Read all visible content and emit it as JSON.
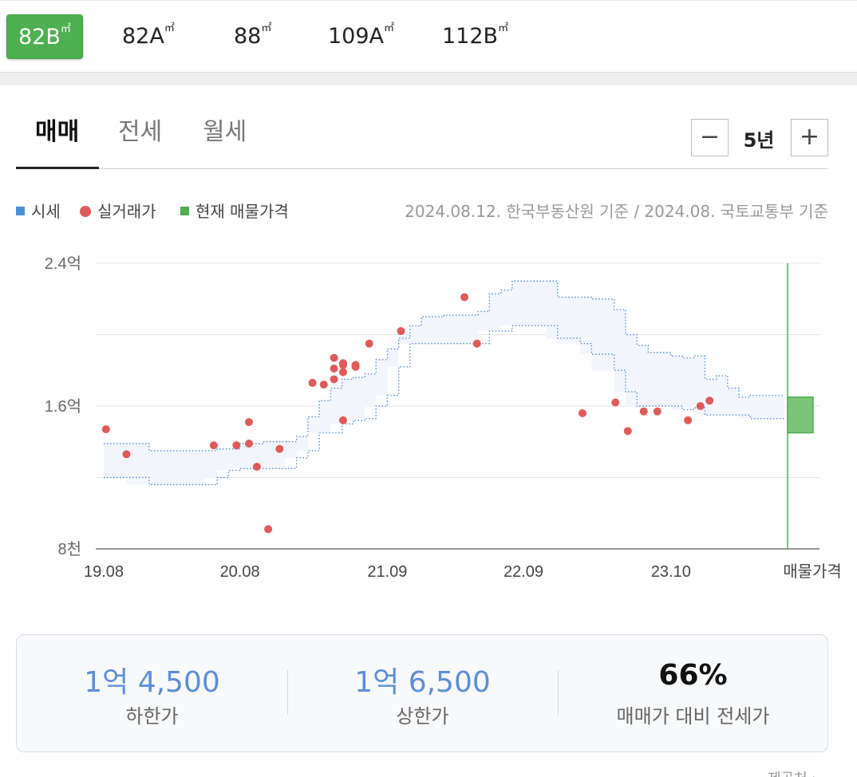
{
  "size_tabs": [
    {
      "label": "82B",
      "unit": "㎡",
      "active": true
    },
    {
      "label": "82A",
      "unit": "㎡",
      "active": false
    },
    {
      "label": "88",
      "unit": "㎡",
      "active": false
    },
    {
      "label": "109A",
      "unit": "㎡",
      "active": false
    },
    {
      "label": "112B",
      "unit": "㎡",
      "active": false
    }
  ],
  "deal_tabs": [
    {
      "label": "매매",
      "active": true
    },
    {
      "label": "전세",
      "active": false
    },
    {
      "label": "월세",
      "active": false
    }
  ],
  "period": {
    "minus": "−",
    "plus": "+",
    "label": "5년"
  },
  "legend": {
    "market": "시세",
    "actual": "실거래가",
    "listing": "현재 매물가격"
  },
  "source_text": "2024.08.12. 한국부동산원 기준 / 2024.08. 국토교통부 기준",
  "colors": {
    "active_tab": "#4caf50",
    "market": "#4a90d9",
    "actual": "#e05a5a",
    "listing": "#4caf50",
    "band_fill": "#f2f6fc",
    "value_text": "#5b8fd6"
  },
  "chart_data": {
    "type": "scatter",
    "y_ticks": [
      {
        "value": 2.4,
        "label": "2.4억"
      },
      {
        "value": 1.6,
        "label": "1.6억"
      },
      {
        "value": 0.8,
        "label": "8천"
      }
    ],
    "ylim": [
      0.8,
      2.4
    ],
    "x_ticks": [
      "19.08",
      "20.08",
      "21.09",
      "22.09",
      "23.10"
    ],
    "x_extra_label": "매물가격",
    "x_tick_months": [
      0,
      12,
      25,
      37,
      50
    ],
    "xlim_months": [
      0,
      60
    ],
    "market_band": {
      "upper": [
        [
          0,
          1.39
        ],
        [
          2,
          1.39
        ],
        [
          4,
          1.35
        ],
        [
          8,
          1.35
        ],
        [
          9,
          1.35
        ],
        [
          10,
          1.36
        ],
        [
          12,
          1.39
        ],
        [
          14,
          1.4
        ],
        [
          16,
          1.4
        ],
        [
          17,
          1.43
        ],
        [
          18,
          1.54
        ],
        [
          19,
          1.63
        ],
        [
          20,
          1.7
        ],
        [
          21,
          1.75
        ],
        [
          22,
          1.76
        ],
        [
          23,
          1.78
        ],
        [
          24,
          1.86
        ],
        [
          25,
          1.92
        ],
        [
          26,
          1.98
        ],
        [
          27,
          2.05
        ],
        [
          28,
          2.1
        ],
        [
          30,
          2.11
        ],
        [
          33,
          2.13
        ],
        [
          34,
          2.23
        ],
        [
          35,
          2.25
        ],
        [
          36,
          2.3
        ],
        [
          39,
          2.3
        ],
        [
          40,
          2.21
        ],
        [
          42,
          2.21
        ],
        [
          43,
          2.2
        ],
        [
          45,
          2.14
        ],
        [
          46,
          2.0
        ],
        [
          47,
          1.94
        ],
        [
          48,
          1.9
        ],
        [
          50,
          1.88
        ],
        [
          51,
          1.87
        ],
        [
          52,
          1.88
        ],
        [
          53,
          1.75
        ],
        [
          54,
          1.77
        ],
        [
          55,
          1.7
        ],
        [
          56,
          1.65
        ],
        [
          57,
          1.66
        ],
        [
          60,
          1.66
        ]
      ],
      "lower": [
        [
          0,
          1.2
        ],
        [
          2,
          1.2
        ],
        [
          4,
          1.16
        ],
        [
          6,
          1.16
        ],
        [
          9,
          1.16
        ],
        [
          10,
          1.2
        ],
        [
          11,
          1.24
        ],
        [
          12,
          1.25
        ],
        [
          14,
          1.25
        ],
        [
          16,
          1.25
        ],
        [
          17,
          1.31
        ],
        [
          18,
          1.35
        ],
        [
          19,
          1.45
        ],
        [
          20,
          1.45
        ],
        [
          21,
          1.5
        ],
        [
          22,
          1.52
        ],
        [
          23,
          1.53
        ],
        [
          24,
          1.6
        ],
        [
          25,
          1.66
        ],
        [
          26,
          1.82
        ],
        [
          27,
          1.95
        ],
        [
          28,
          1.95
        ],
        [
          30,
          1.95
        ],
        [
          33,
          1.95
        ],
        [
          34,
          2.02
        ],
        [
          35,
          2.02
        ],
        [
          36,
          2.05
        ],
        [
          39,
          2.05
        ],
        [
          40,
          1.98
        ],
        [
          42,
          1.95
        ],
        [
          43,
          1.89
        ],
        [
          45,
          1.8
        ],
        [
          46,
          1.68
        ],
        [
          47,
          1.6
        ],
        [
          48,
          1.6
        ],
        [
          50,
          1.6
        ],
        [
          51,
          1.58
        ],
        [
          52,
          1.59
        ],
        [
          53,
          1.55
        ],
        [
          54,
          1.55
        ],
        [
          55,
          1.55
        ],
        [
          56,
          1.55
        ],
        [
          57,
          1.53
        ],
        [
          60,
          1.53
        ]
      ]
    },
    "actual_trades": [
      [
        0.2,
        1.47
      ],
      [
        2,
        1.33
      ],
      [
        9.7,
        1.38
      ],
      [
        11.7,
        1.38
      ],
      [
        12.8,
        1.39
      ],
      [
        12.8,
        1.51
      ],
      [
        13.5,
        1.26
      ],
      [
        14.5,
        0.91
      ],
      [
        15.5,
        1.36
      ],
      [
        18.4,
        1.73
      ],
      [
        19.4,
        1.72
      ],
      [
        20.3,
        1.81
      ],
      [
        20.3,
        1.87
      ],
      [
        20.3,
        1.75
      ],
      [
        21.1,
        1.83
      ],
      [
        21.1,
        1.84
      ],
      [
        21.1,
        1.79
      ],
      [
        21.1,
        1.52
      ],
      [
        22.2,
        1.82
      ],
      [
        22.2,
        1.83
      ],
      [
        23.4,
        1.95
      ],
      [
        26.2,
        2.02
      ],
      [
        31.8,
        2.21
      ],
      [
        32.9,
        1.95
      ],
      [
        42.2,
        1.56
      ],
      [
        45.1,
        1.62
      ],
      [
        46.2,
        1.46
      ],
      [
        47.6,
        1.57
      ],
      [
        48.8,
        1.57
      ],
      [
        51.5,
        1.52
      ],
      [
        52.6,
        1.6
      ],
      [
        53.4,
        1.63
      ]
    ],
    "listing_range": {
      "low": 1.45,
      "high": 1.65
    }
  },
  "summary": [
    {
      "value": "1억 4,500",
      "label": "하한가"
    },
    {
      "value": "1억 6,500",
      "label": "상한가"
    },
    {
      "value": "66%",
      "label": "매매가 대비 전세가"
    }
  ],
  "report_text": "제공처 ›"
}
